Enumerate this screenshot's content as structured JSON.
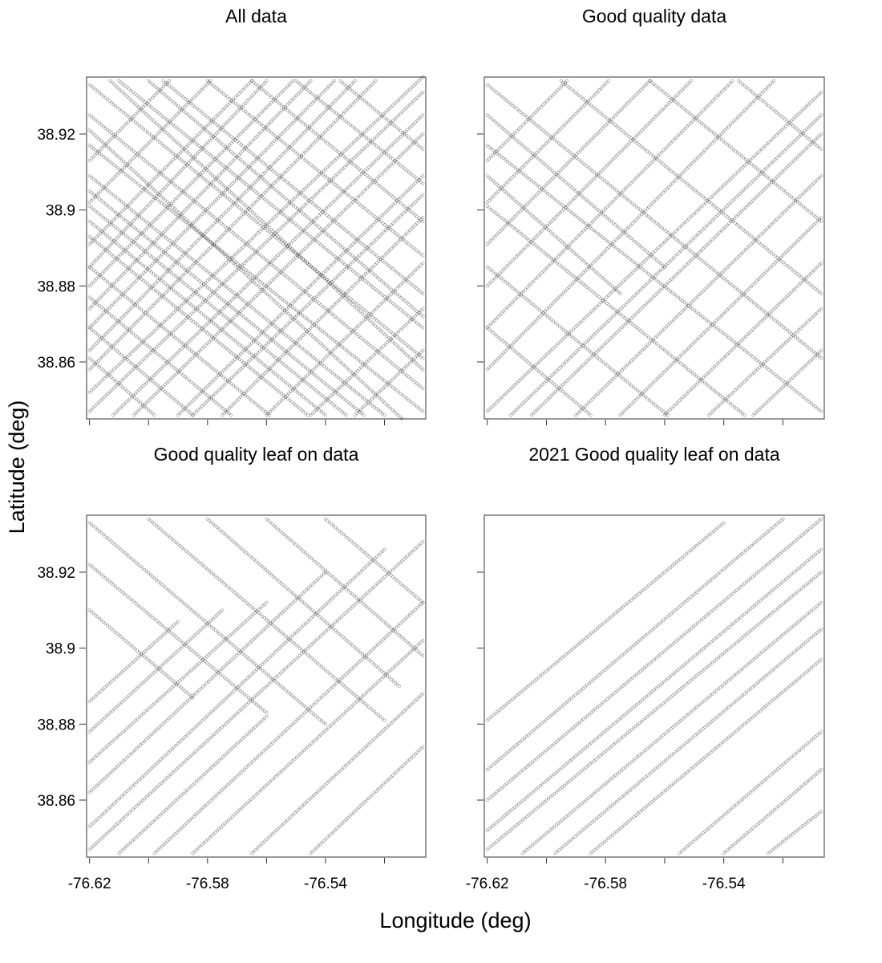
{
  "figure": {
    "xlabel": "Longitude (deg)",
    "ylabel": "Latitude (deg)",
    "point_color": "#000000",
    "point_opacity": 0.28
  },
  "chart_data": [
    {
      "type": "scatter",
      "title": "All data",
      "xlim": [
        -76.621,
        -76.506
      ],
      "ylim": [
        38.845,
        38.935
      ],
      "x_ticks": [
        -76.62,
        -76.6,
        -76.58,
        -76.56,
        -76.54,
        -76.52
      ],
      "x_tick_labels": [
        "",
        "",
        "",
        "",
        "",
        ""
      ],
      "y_ticks": [
        38.92,
        38.9,
        38.88,
        38.86
      ],
      "y_tick_labels": [
        "38.92",
        "38.9",
        "38.88",
        "38.86"
      ],
      "tracks": [
        [
          -76.62,
          38.933,
          -76.507,
          38.861
        ],
        [
          -76.62,
          38.925,
          -76.507,
          38.853
        ],
        [
          -76.62,
          38.917,
          -76.507,
          38.847
        ],
        [
          -76.62,
          38.909,
          -76.52,
          38.846
        ],
        [
          -76.62,
          38.901,
          -76.533,
          38.846
        ],
        [
          -76.62,
          38.893,
          -76.546,
          38.846
        ],
        [
          -76.62,
          38.885,
          -76.559,
          38.846
        ],
        [
          -76.62,
          38.877,
          -76.572,
          38.846
        ],
        [
          -76.62,
          38.869,
          -76.585,
          38.846
        ],
        [
          -76.62,
          38.861,
          -76.598,
          38.846
        ],
        [
          -76.61,
          38.934,
          -76.507,
          38.869
        ],
        [
          -76.595,
          38.934,
          -76.507,
          38.878
        ],
        [
          -76.58,
          38.934,
          -76.507,
          38.888
        ],
        [
          -76.565,
          38.934,
          -76.507,
          38.897
        ],
        [
          -76.55,
          38.934,
          -76.507,
          38.907
        ],
        [
          -76.535,
          38.934,
          -76.507,
          38.916
        ],
        [
          -76.62,
          38.847,
          -76.507,
          38.931
        ],
        [
          -76.62,
          38.858,
          -76.523,
          38.934
        ],
        [
          -76.62,
          38.869,
          -76.537,
          38.934
        ],
        [
          -76.62,
          38.88,
          -76.551,
          38.934
        ],
        [
          -76.62,
          38.891,
          -76.565,
          38.934
        ],
        [
          -76.62,
          38.902,
          -76.579,
          38.934
        ],
        [
          -76.62,
          38.913,
          -76.593,
          38.934
        ],
        [
          -76.605,
          38.846,
          -76.507,
          38.92
        ],
        [
          -76.59,
          38.846,
          -76.507,
          38.909
        ],
        [
          -76.575,
          38.846,
          -76.507,
          38.898
        ],
        [
          -76.56,
          38.846,
          -76.507,
          38.886
        ],
        [
          -76.545,
          38.846,
          -76.507,
          38.874
        ],
        [
          -76.53,
          38.846,
          -76.507,
          38.863
        ],
        [
          -76.613,
          38.934,
          -76.507,
          38.858
        ],
        [
          -76.62,
          38.921,
          -76.507,
          38.84
        ],
        [
          -76.6,
          38.934,
          -76.507,
          38.872
        ],
        [
          -76.62,
          38.897,
          -76.54,
          38.846
        ],
        [
          -76.62,
          38.905,
          -76.527,
          38.846
        ],
        [
          -76.62,
          38.852,
          -76.507,
          38.935
        ],
        [
          -76.612,
          38.846,
          -76.507,
          38.925
        ],
        [
          -76.62,
          38.863,
          -76.53,
          38.934
        ],
        [
          -76.585,
          38.846,
          -76.507,
          38.904
        ],
        [
          -76.62,
          38.885,
          -76.56,
          38.934
        ],
        [
          -76.62,
          38.874,
          -76.545,
          38.934
        ]
      ]
    },
    {
      "type": "scatter",
      "title": "Good quality data",
      "xlim": [
        -76.621,
        -76.506
      ],
      "ylim": [
        38.845,
        38.935
      ],
      "x_ticks": [
        -76.62,
        -76.6,
        -76.58,
        -76.56,
        -76.54,
        -76.52
      ],
      "x_tick_labels": [
        "",
        "",
        "",
        "",
        "",
        ""
      ],
      "y_ticks": [
        38.92,
        38.9,
        38.88,
        38.86
      ],
      "y_tick_labels": [
        "",
        "",
        "",
        ""
      ],
      "tracks": [
        [
          -76.62,
          38.933,
          -76.507,
          38.861
        ],
        [
          -76.62,
          38.917,
          -76.507,
          38.847
        ],
        [
          -76.62,
          38.901,
          -76.533,
          38.846
        ],
        [
          -76.62,
          38.885,
          -76.559,
          38.846
        ],
        [
          -76.62,
          38.869,
          -76.585,
          38.846
        ],
        [
          -76.595,
          38.934,
          -76.507,
          38.878
        ],
        [
          -76.565,
          38.934,
          -76.507,
          38.897
        ],
        [
          -76.535,
          38.934,
          -76.507,
          38.916
        ],
        [
          -76.62,
          38.847,
          -76.507,
          38.931
        ],
        [
          -76.62,
          38.858,
          -76.523,
          38.934
        ],
        [
          -76.62,
          38.869,
          -76.537,
          38.934
        ],
        [
          -76.62,
          38.88,
          -76.551,
          38.934
        ],
        [
          -76.62,
          38.891,
          -76.565,
          38.934
        ],
        [
          -76.62,
          38.902,
          -76.579,
          38.934
        ],
        [
          -76.605,
          38.846,
          -76.507,
          38.92
        ],
        [
          -76.59,
          38.846,
          -76.507,
          38.909
        ],
        [
          -76.575,
          38.846,
          -76.507,
          38.898
        ],
        [
          -76.56,
          38.846,
          -76.507,
          38.886
        ],
        [
          -76.545,
          38.846,
          -76.507,
          38.874
        ],
        [
          -76.53,
          38.846,
          -76.507,
          38.863
        ],
        [
          -76.62,
          38.913,
          -76.593,
          38.934
        ],
        [
          -76.612,
          38.846,
          -76.507,
          38.925
        ],
        [
          -76.62,
          38.925,
          -76.56,
          38.885
        ],
        [
          -76.62,
          38.909,
          -76.575,
          38.878
        ]
      ]
    },
    {
      "type": "scatter",
      "title": "Good quality leaf on data",
      "xlim": [
        -76.621,
        -76.506
      ],
      "ylim": [
        38.845,
        38.935
      ],
      "x_ticks": [
        -76.62,
        -76.6,
        -76.58,
        -76.56,
        -76.54,
        -76.52
      ],
      "x_tick_labels": [
        "-76.62",
        "",
        "-76.58",
        "",
        "-76.54",
        ""
      ],
      "y_ticks": [
        38.92,
        38.9,
        38.88,
        38.86
      ],
      "y_tick_labels": [
        "38.92",
        "38.9",
        "38.88",
        "38.86"
      ],
      "tracks": [
        [
          -76.62,
          38.847,
          -76.507,
          38.928
        ],
        [
          -76.62,
          38.853,
          -76.52,
          38.926
        ],
        [
          -76.62,
          38.862,
          -76.54,
          38.92
        ],
        [
          -76.62,
          38.87,
          -76.56,
          38.912
        ],
        [
          -76.62,
          38.878,
          -76.575,
          38.91
        ],
        [
          -76.62,
          38.886,
          -76.59,
          38.907
        ],
        [
          -76.598,
          38.846,
          -76.507,
          38.912
        ],
        [
          -76.585,
          38.846,
          -76.507,
          38.902
        ],
        [
          -76.565,
          38.846,
          -76.507,
          38.888
        ],
        [
          -76.545,
          38.846,
          -76.507,
          38.874
        ],
        [
          -76.61,
          38.846,
          -76.56,
          38.882
        ],
        [
          -76.62,
          38.933,
          -76.54,
          38.88
        ],
        [
          -76.62,
          38.922,
          -76.56,
          38.883
        ],
        [
          -76.62,
          38.91,
          -76.585,
          38.887
        ],
        [
          -76.6,
          38.934,
          -76.52,
          38.881
        ],
        [
          -76.58,
          38.934,
          -76.515,
          38.89
        ],
        [
          -76.56,
          38.934,
          -76.507,
          38.898
        ],
        [
          -76.54,
          38.934,
          -76.507,
          38.912
        ]
      ]
    },
    {
      "type": "scatter",
      "title": "2021 Good quality leaf on data",
      "xlim": [
        -76.621,
        -76.506
      ],
      "ylim": [
        38.845,
        38.935
      ],
      "x_ticks": [
        -76.62,
        -76.6,
        -76.58,
        -76.56,
        -76.54,
        -76.52
      ],
      "x_tick_labels": [
        "-76.62",
        "",
        "-76.58",
        "",
        "-76.54",
        ""
      ],
      "y_ticks": [
        38.92,
        38.9,
        38.88,
        38.86
      ],
      "y_tick_labels": [
        "",
        "",
        "",
        ""
      ],
      "tracks": [
        [
          -76.62,
          38.881,
          -76.54,
          38.933
        ],
        [
          -76.62,
          38.868,
          -76.52,
          38.934
        ],
        [
          -76.62,
          38.86,
          -76.507,
          38.934
        ],
        [
          -76.62,
          38.852,
          -76.507,
          38.926
        ],
        [
          -76.62,
          38.847,
          -76.507,
          38.92
        ],
        [
          -76.608,
          38.846,
          -76.507,
          38.912
        ],
        [
          -76.597,
          38.846,
          -76.507,
          38.905
        ],
        [
          -76.585,
          38.846,
          -76.507,
          38.897
        ],
        [
          -76.555,
          38.846,
          -76.507,
          38.878
        ],
        [
          -76.54,
          38.846,
          -76.507,
          38.868
        ],
        [
          -76.525,
          38.846,
          -76.507,
          38.857
        ]
      ]
    }
  ]
}
